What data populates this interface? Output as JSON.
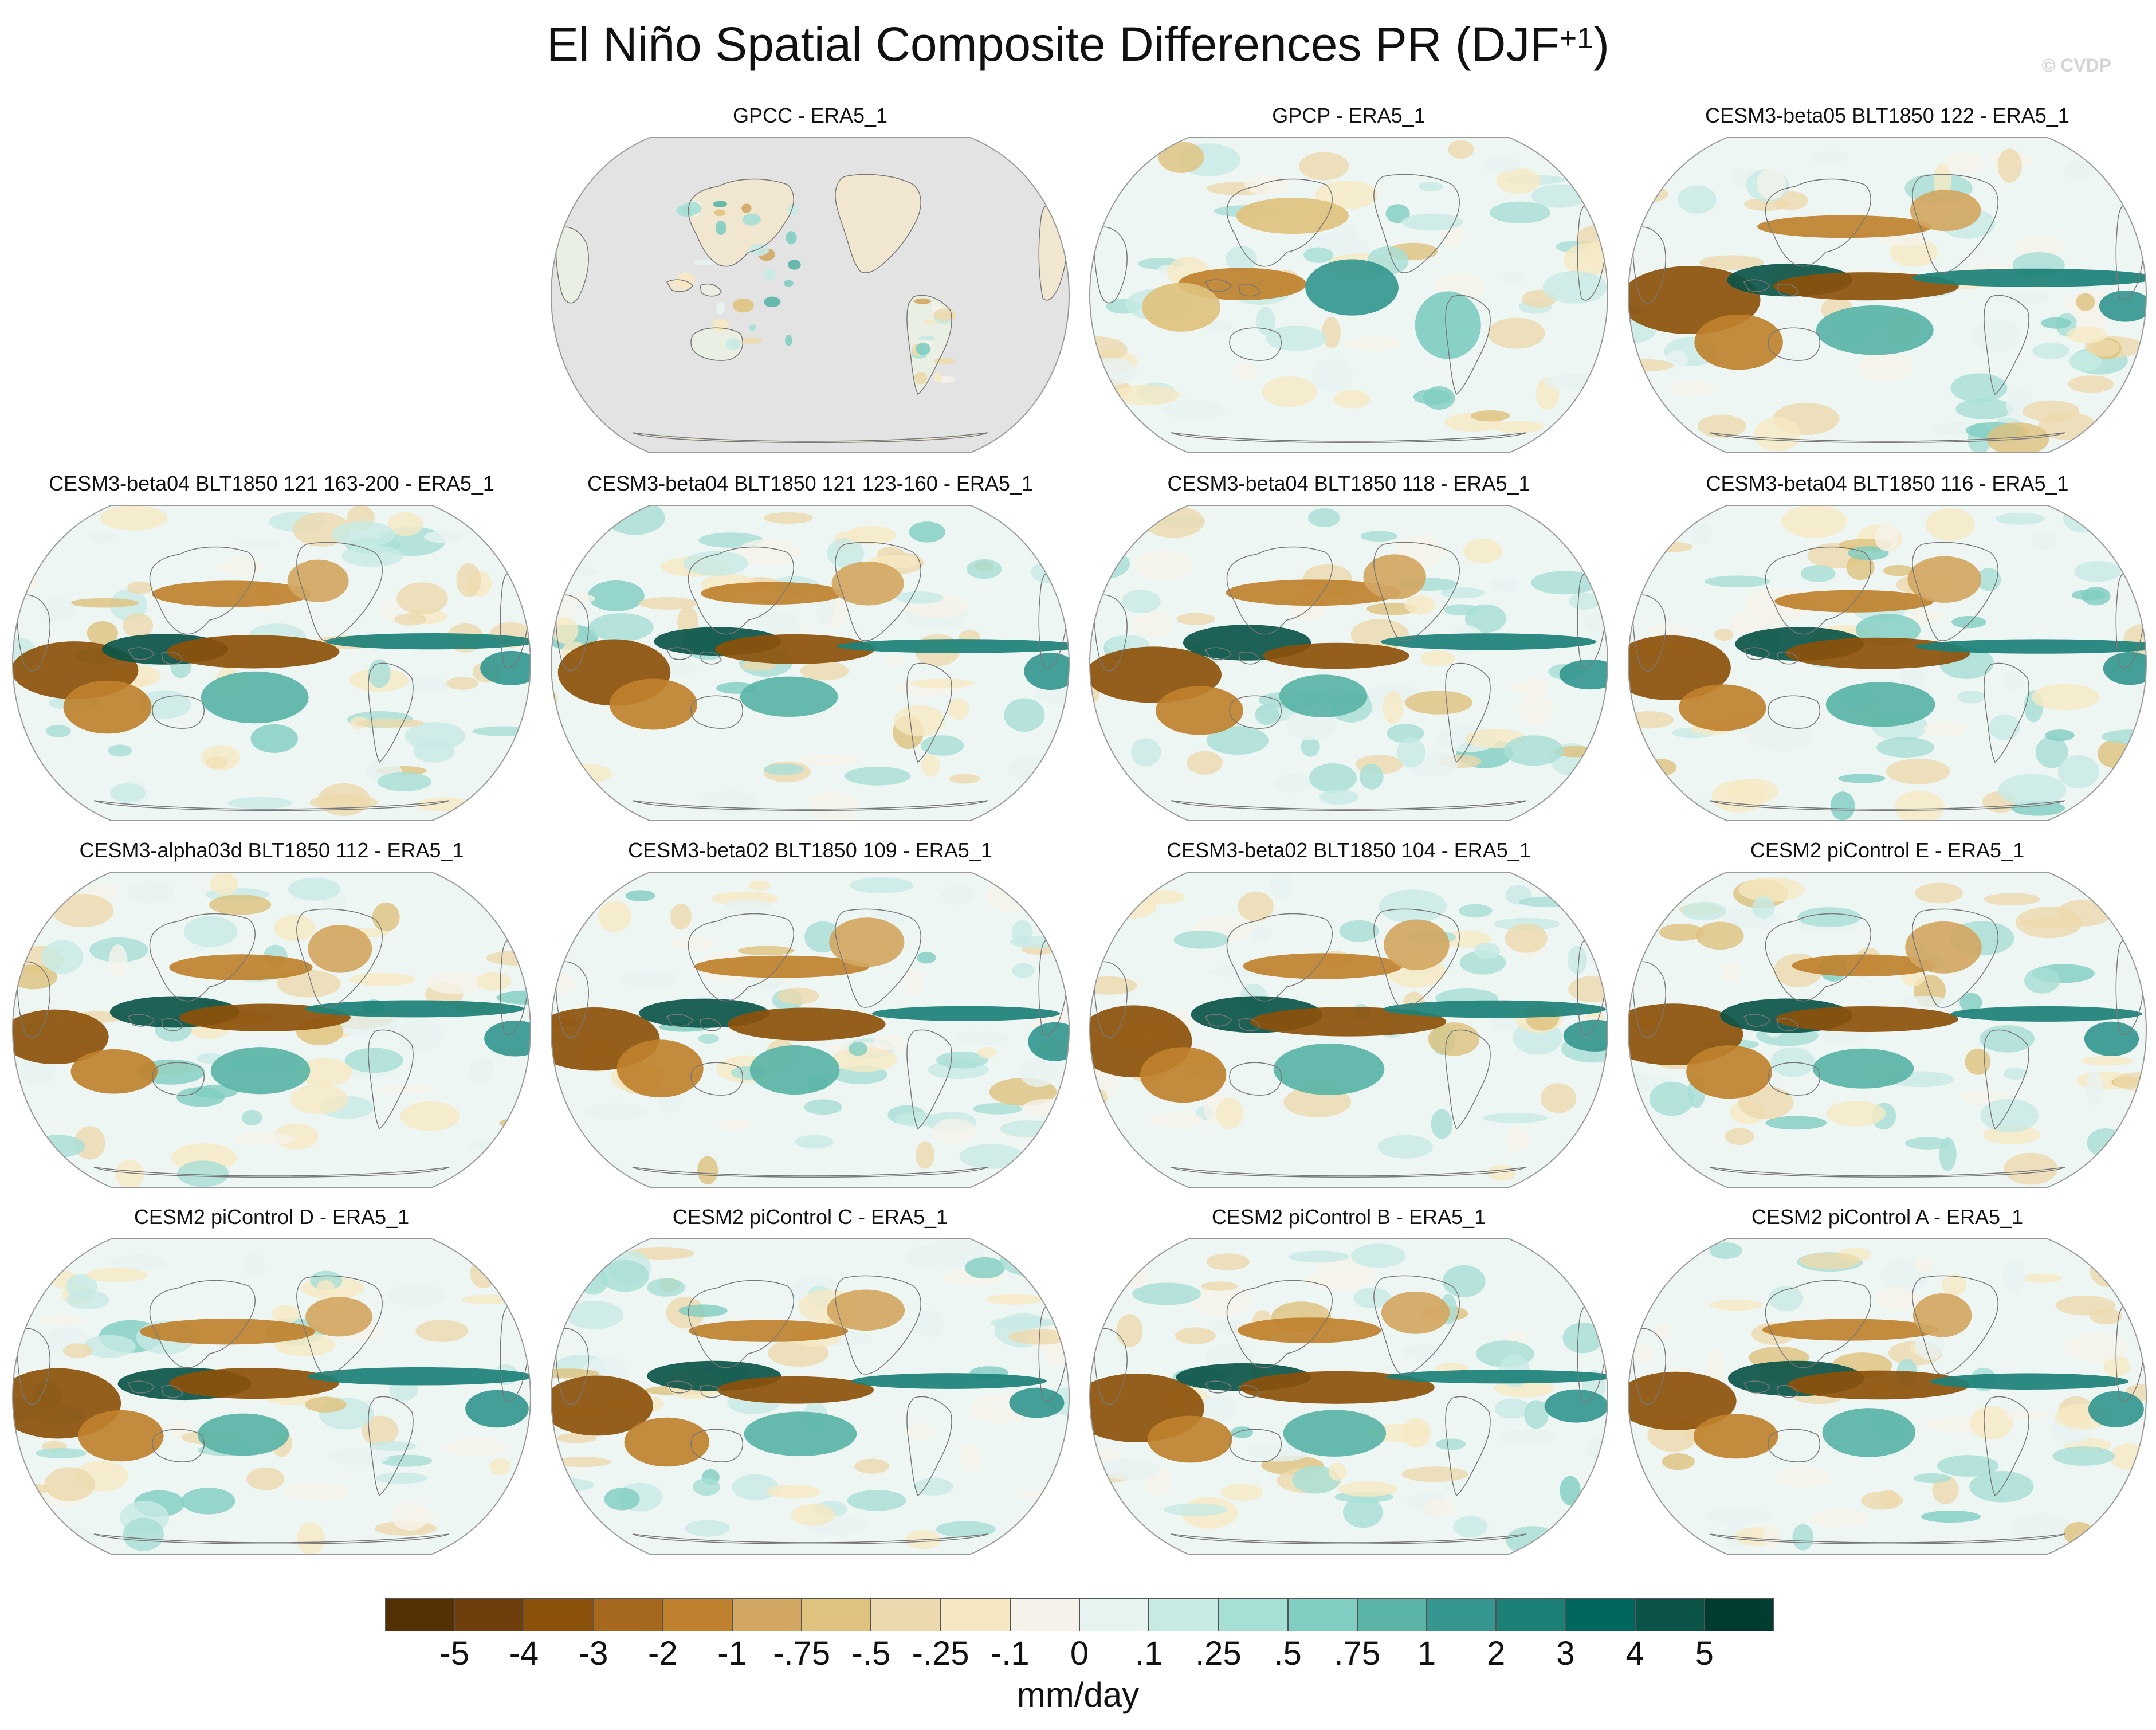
{
  "figure": {
    "title_main": "El Niño Spatial Composite Differences PR (DJF",
    "title_sup": "+1",
    "title_close": ")",
    "watermark": "© CVDP"
  },
  "panels": [
    {
      "title": "GPCC - ERA5_1",
      "style": "land-only",
      "pattern": 0
    },
    {
      "title": "GPCP - ERA5_1",
      "style": "obs",
      "pattern": 1
    },
    {
      "title": "CESM3-beta05 BLT1850 122 - ERA5_1",
      "style": "model",
      "pattern": 2
    },
    {
      "title": "CESM3-beta04 BLT1850 121 163-200 - ERA5_1",
      "style": "model",
      "pattern": 3
    },
    {
      "title": "CESM3-beta04 BLT1850 121 123-160 - ERA5_1",
      "style": "model",
      "pattern": 4
    },
    {
      "title": "CESM3-beta04 BLT1850 118 - ERA5_1",
      "style": "model",
      "pattern": 5
    },
    {
      "title": "CESM3-beta04 BLT1850 116 - ERA5_1",
      "style": "model",
      "pattern": 6
    },
    {
      "title": "CESM3-alpha03d BLT1850 112 - ERA5_1",
      "style": "model",
      "pattern": 7
    },
    {
      "title": "CESM3-beta02 BLT1850 109 - ERA5_1",
      "style": "model",
      "pattern": 8
    },
    {
      "title": "CESM3-beta02 BLT1850 104 - ERA5_1",
      "style": "model",
      "pattern": 9
    },
    {
      "title": "CESM2 piControl E - ERA5_1",
      "style": "model",
      "pattern": 10
    },
    {
      "title": "CESM2 piControl D - ERA5_1",
      "style": "model",
      "pattern": 11
    },
    {
      "title": "CESM2 piControl C - ERA5_1",
      "style": "model",
      "pattern": 12
    },
    {
      "title": "CESM2 piControl B - ERA5_1",
      "style": "model",
      "pattern": 13
    },
    {
      "title": "CESM2 piControl A - ERA5_1",
      "style": "model",
      "pattern": 14
    }
  ],
  "colorbar": {
    "units": "mm/day",
    "levels": [
      "-5",
      "-4",
      "-3",
      "-2",
      "-1",
      "-.75",
      "-.5",
      "-.25",
      "-.1",
      "0",
      ".1",
      ".25",
      ".5",
      ".75",
      "1",
      "2",
      "3",
      "4",
      "5"
    ],
    "colors": [
      "#543005",
      "#6e3f0c",
      "#8c510a",
      "#a6671f",
      "#bf812d",
      "#d2a762",
      "#dfc27d",
      "#ecd9ad",
      "#f6e8c3",
      "#f5f2ea",
      "#e7f3f1",
      "#c7eae5",
      "#a6dfd6",
      "#80cdc1",
      "#5ab4a6",
      "#35978f",
      "#1c8077",
      "#01665e",
      "#0c5448",
      "#003c30"
    ]
  }
}
